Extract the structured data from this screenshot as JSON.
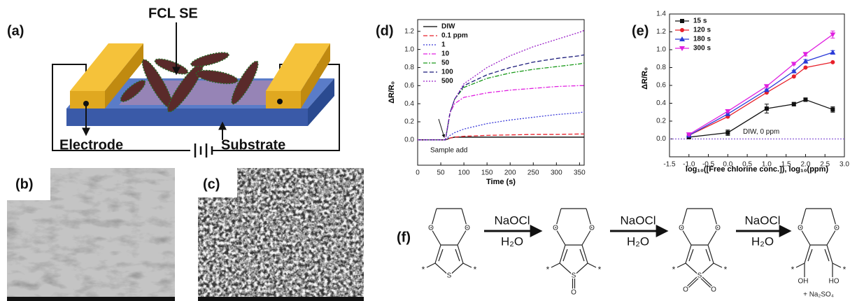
{
  "panels": [
    "(a)",
    "(b)",
    "(c)",
    "(d)",
    "(e)",
    "(f)"
  ],
  "schematic": {
    "title": "FCL SE",
    "labels": [
      "Electrode",
      "Substrate"
    ]
  },
  "chart_data": [
    {
      "type": "line",
      "xlabel": "Time (s)",
      "ylabel": "ΔR/R₀",
      "x": [
        0,
        50,
        60,
        70,
        80,
        100,
        150,
        200,
        250,
        300,
        350,
        360
      ],
      "xlim": [
        0,
        360
      ],
      "xticks": [
        0,
        50,
        100,
        150,
        200,
        250,
        300,
        350
      ],
      "ylim": [
        -0.28,
        1.33
      ],
      "yticks": [
        {
          "value": 0,
          "label": "0.0"
        },
        0.2,
        0.4,
        0.6,
        0.8,
        {
          "value": 1,
          "label": "1.0"
        },
        1.2
      ],
      "legend": "upper left",
      "annotation": "Sample add",
      "series": [
        {
          "name": "DIW",
          "color": "#000000",
          "dash": "solid",
          "values": [
            0,
            0,
            0,
            0.02,
            0.03,
            0.03,
            0.03,
            0.03,
            0.03,
            0.03,
            0.03,
            0.03
          ]
        },
        {
          "name": "0.1 ppm",
          "color": "#e8202a",
          "dash": "dashed",
          "values": [
            0,
            0,
            0,
            0.02,
            0.03,
            0.04,
            0.05,
            0.055,
            0.06,
            0.06,
            0.065,
            0.065
          ]
        },
        {
          "name": "1",
          "color": "#3b3bd8",
          "dash": "dotted",
          "values": [
            0,
            0,
            0,
            0.05,
            0.08,
            0.12,
            0.18,
            0.22,
            0.25,
            0.28,
            0.3,
            0.31
          ]
        },
        {
          "name": "10",
          "color": "#e020e0",
          "dash": "dashdot",
          "values": [
            0,
            0,
            0,
            0.3,
            0.4,
            0.47,
            0.52,
            0.55,
            0.57,
            0.59,
            0.6,
            0.6
          ]
        },
        {
          "name": "50",
          "color": "#1a9a1a",
          "dash": "dashdot",
          "values": [
            0,
            0,
            0,
            0.3,
            0.45,
            0.58,
            0.68,
            0.74,
            0.78,
            0.81,
            0.84,
            0.85
          ]
        },
        {
          "name": "100",
          "color": "#1a1a7a",
          "dash": "dashed",
          "values": [
            0,
            0,
            0,
            0.3,
            0.45,
            0.6,
            0.72,
            0.8,
            0.86,
            0.9,
            0.93,
            0.94
          ]
        },
        {
          "name": "500",
          "color": "#9a20c8",
          "dash": "dotted",
          "values": [
            0,
            0,
            0,
            0.3,
            0.45,
            0.62,
            0.8,
            0.93,
            1.03,
            1.11,
            1.19,
            1.21
          ]
        }
      ]
    },
    {
      "type": "line",
      "xlabel": "log₁₀([Free chlorine conc.]), log₁₀(ppm)",
      "ylabel": "ΔR/R₀",
      "x": [
        -1,
        0,
        1,
        1.7,
        2,
        2.7
      ],
      "xlim": [
        -1.5,
        3
      ],
      "xticks": [
        -1.5,
        {
          "value": -1,
          "label": "-1.0"
        },
        -0.5,
        {
          "value": 0,
          "label": "0.0"
        },
        0.5,
        {
          "value": 1,
          "label": "1.0"
        },
        1.5,
        {
          "value": 2,
          "label": "2.0"
        },
        2.5,
        {
          "value": 3,
          "label": "3.0"
        }
      ],
      "ylim": [
        -0.2,
        1.4
      ],
      "yticks": [
        {
          "value": 0,
          "label": "0.0"
        },
        0.2,
        0.4,
        0.6,
        0.8,
        {
          "value": 1,
          "label": "1.0"
        },
        1.2,
        1.4
      ],
      "legend": "upper left",
      "reference_line": {
        "value": 0,
        "label": "DIW, 0 ppm",
        "color": "#8a5ad8"
      },
      "series": [
        {
          "name": "15 s",
          "color": "#111111",
          "dash": "solid",
          "marker": "square",
          "values": [
            0.02,
            0.07,
            0.34,
            0.39,
            0.44,
            0.33
          ],
          "errors": [
            0.01,
            0.03,
            0.05,
            0.02,
            0.02,
            0.03
          ]
        },
        {
          "name": "120 s",
          "color": "#e8202a",
          "dash": "solid",
          "marker": "circle",
          "values": [
            0.04,
            0.25,
            0.52,
            0.7,
            0.8,
            0.86
          ]
        },
        {
          "name": "180 s",
          "color": "#2a3ad8",
          "dash": "solid",
          "marker": "triangle-up",
          "values": [
            0.04,
            0.28,
            0.55,
            0.76,
            0.87,
            0.97
          ],
          "errors": [
            0.01,
            0.01,
            0.01,
            0.01,
            0.02,
            0.02
          ]
        },
        {
          "name": "300 s",
          "color": "#e020e0",
          "dash": "solid",
          "marker": "triangle-down",
          "values": [
            0.05,
            0.31,
            0.59,
            0.84,
            0.95,
            1.17
          ],
          "errors": [
            0.01,
            0.01,
            0.01,
            0.01,
            0.02,
            0.04
          ]
        }
      ]
    }
  ],
  "scheme": {
    "steps": [
      {
        "reagent": "NaOCl",
        "solvent": "H₂O"
      },
      {
        "reagent": "NaOCl",
        "solvent": "H₂O"
      },
      {
        "reagent": "NaOCl",
        "solvent": "H₂O"
      }
    ],
    "structures": [
      {
        "atoms": [
          "O",
          "O",
          "S"
        ],
        "ends": [
          "*",
          "*"
        ]
      },
      {
        "atoms": [
          "O",
          "O",
          "S",
          "O"
        ],
        "ends": [
          "*",
          "*"
        ]
      },
      {
        "atoms": [
          "O",
          "O",
          "S",
          "O",
          "O"
        ],
        "ends": [
          "*",
          "*"
        ]
      },
      {
        "atoms": [
          "O",
          "O",
          "OH",
          "HO"
        ],
        "ends": [
          "*",
          "*"
        ],
        "byproduct": "+ Na₂SO₄"
      }
    ]
  }
}
